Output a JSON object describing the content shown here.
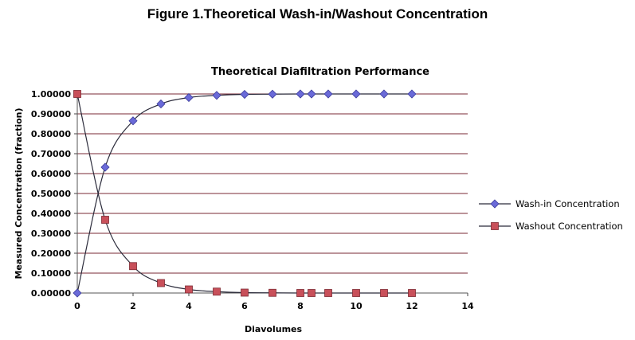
{
  "figure_title": "Figure 1.Theoretical Wash-in/Washout Concentration",
  "chart_data": {
    "type": "line",
    "title": "Theoretical Diafiltration Performance",
    "xlabel": "Diavolumes",
    "ylabel": "Measured Concentration (fraction)",
    "xlim": [
      0,
      14
    ],
    "ylim": [
      0,
      1
    ],
    "x_ticks": [
      0,
      2,
      4,
      6,
      8,
      10,
      12,
      14
    ],
    "x_tick_labels": [
      "0",
      "2",
      "4",
      "6",
      "8",
      "10",
      "12",
      "14"
    ],
    "y_ticks": [
      0,
      0.1,
      0.2,
      0.3,
      0.4,
      0.5,
      0.6,
      0.7,
      0.8,
      0.9,
      1.0
    ],
    "y_tick_labels": [
      "0.00000",
      "0.10000",
      "0.20000",
      "0.30000",
      "0.40000",
      "0.50000",
      "0.60000",
      "0.70000",
      "0.80000",
      "0.90000",
      "1.00000"
    ],
    "grid": "horizontal",
    "legend_position": "right",
    "series": [
      {
        "name": "Wash-in Concentration",
        "color": "#6a6ad8",
        "marker": "diamond",
        "x": [
          0,
          1,
          2,
          3,
          4,
          5,
          6,
          7,
          8,
          8.4,
          9,
          10,
          11,
          12
        ],
        "values": [
          0.0,
          0.632,
          0.865,
          0.95,
          0.982,
          0.993,
          0.998,
          0.999,
          1.0,
          1.0,
          1.0,
          1.0,
          1.0,
          1.0
        ]
      },
      {
        "name": "Washout Concentration",
        "color": "#c8505a",
        "marker": "square",
        "x": [
          0,
          1,
          2,
          3,
          4,
          5,
          6,
          7,
          8,
          8.4,
          9,
          10,
          11,
          12
        ],
        "values": [
          1.0,
          0.368,
          0.135,
          0.05,
          0.018,
          0.007,
          0.002,
          0.001,
          0.0,
          0.0,
          0.0,
          0.0,
          0.0,
          0.0
        ]
      }
    ]
  }
}
